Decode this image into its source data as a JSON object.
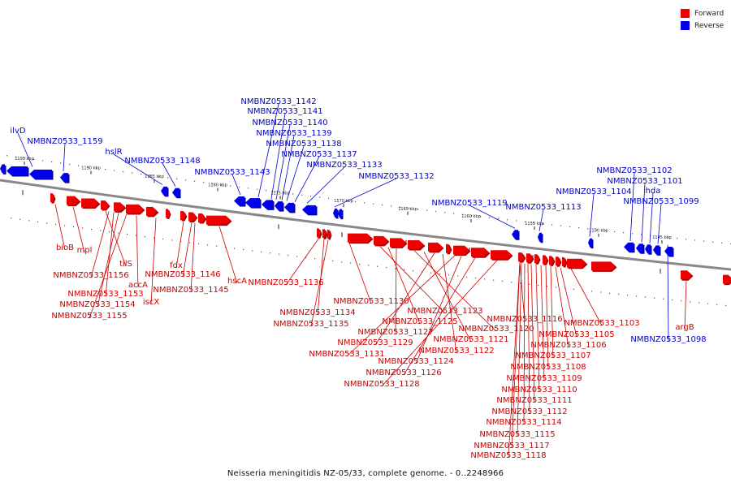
{
  "title": "Neisseria meningitidis NZ-05/33, complete genome. - 0..2248966",
  "legend": [
    {
      "label": "Forward",
      "color": "#ee0000"
    },
    {
      "label": "Reverse",
      "color": "#0000ee"
    }
  ],
  "colors": {
    "forward": "#ee0000",
    "reverse": "#0000ee",
    "backbone": "#888888",
    "label_forward": "#cc0000",
    "label_reverse": "#0000cc"
  },
  "ticks": [
    "1195 kbp",
    "1190 kbp",
    "1185 kbp",
    "1180 kbp",
    "1175 kbp",
    "1170 kbp",
    "1165 kbp",
    "1160 kbp",
    "1155 kbp",
    "1150 kbp",
    "1145 kbp"
  ],
  "reverse_labels": [
    "ilvD",
    "NMBNZ0533_1159",
    "hslR",
    "NMBNZ0533_1148",
    "NMBNZ0533_1143",
    "NMBNZ0533_1142",
    "NMBNZ0533_1141",
    "NMBNZ0533_1140",
    "NMBNZ0533_1139",
    "NMBNZ0533_1138",
    "NMBNZ0533_1137",
    "NMBNZ0533_1133",
    "NMBNZ0533_1132",
    "NMBNZ0533_1119",
    "NMBNZ0533_1113",
    "NMBNZ0533_1104",
    "NMBNZ0533_1102",
    "NMBNZ0533_1101",
    "hda",
    "NMBNZ0533_1099",
    "NMBNZ0533_1098"
  ],
  "forward_labels": [
    "bioB",
    "mpl",
    "tilS",
    "NMBNZ0533_1156",
    "NMBNZ0533_1153",
    "NMBNZ0533_1154",
    "NMBNZ0533_1155",
    "fdx",
    "NMBNZ0533_1146",
    "accA",
    "NMBNZ0533_1145",
    "iscX",
    "hscA",
    "NMBNZ0533_1136",
    "NMBNZ0533_1134",
    "NMBNZ0533_1135",
    "NMBNZ0533_1130",
    "NMBNZ0533_1123",
    "NMBNZ0533_1125",
    "NMBNZ0533_1127",
    "NMBNZ0533_1120",
    "NMBNZ0533_1121",
    "NMBNZ0533_1129",
    "NMBNZ0533_1122",
    "NMBNZ0533_1131",
    "NMBNZ0533_1124",
    "NMBNZ0533_1126",
    "NMBNZ0533_1128",
    "NMBNZ0533_1116",
    "NMBNZ0533_1103",
    "NMBNZ0533_1105",
    "NMBNZ0533_1106",
    "NMBNZ0533_1107",
    "NMBNZ0533_1108",
    "NMBNZ0533_1109",
    "NMBNZ0533_1110",
    "NMBNZ0533_1111",
    "NMBNZ0533_1112",
    "NMBNZ0533_1114",
    "NMBNZ0533_1115",
    "NMBNZ0533_1117",
    "NMBNZ0533_1118",
    "argB"
  ]
}
